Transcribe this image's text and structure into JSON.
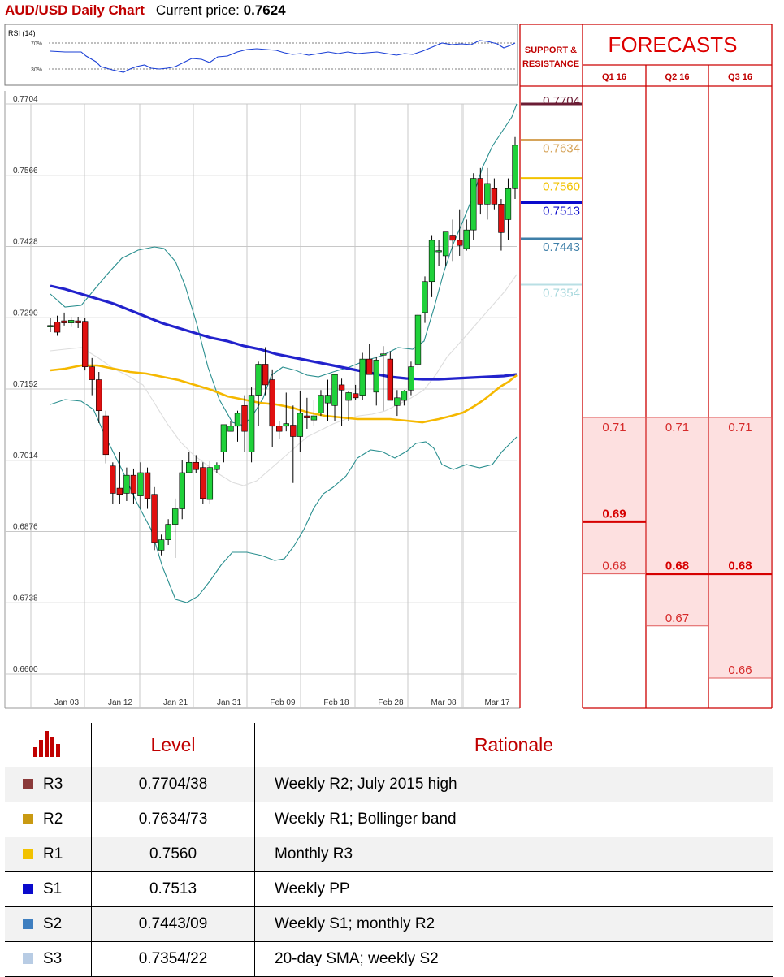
{
  "header": {
    "title": "AUD/USD Daily Chart",
    "current_price_label": "Current price:",
    "current_price": "0.7624"
  },
  "chart_data": {
    "type": "candlestick",
    "title": "AUD/USD Daily Chart",
    "ylim": [
      0.66,
      0.7704
    ],
    "y_ticks": [
      "0.7704",
      "0.7566",
      "0.7428",
      "0.7290",
      "0.7152",
      "0.7014",
      "0.6876",
      "0.6738",
      "0.6600"
    ],
    "x_ticks": [
      "Jan 03",
      "Jan 12",
      "Jan 21",
      "Jan 31",
      "Feb 09",
      "Feb 18",
      "Feb 28",
      "Mar 08",
      "Mar 17"
    ],
    "ohlc": [
      [
        0.7272,
        0.729,
        0.7262,
        0.7275
      ],
      [
        0.7282,
        0.7294,
        0.7255,
        0.7262
      ],
      [
        0.7284,
        0.73,
        0.7275,
        0.728
      ],
      [
        0.728,
        0.7292,
        0.7272,
        0.7285
      ],
      [
        0.7284,
        0.7292,
        0.727,
        0.728
      ],
      [
        0.7283,
        0.729,
        0.7188,
        0.7195
      ],
      [
        0.7195,
        0.7212,
        0.714,
        0.717
      ],
      [
        0.717,
        0.7185,
        0.7086,
        0.711
      ],
      [
        0.71,
        0.711,
        0.7008,
        0.7025
      ],
      [
        0.7003,
        0.701,
        0.693,
        0.695
      ],
      [
        0.696,
        0.703,
        0.693,
        0.6948
      ],
      [
        0.695,
        0.7,
        0.6935,
        0.6985
      ],
      [
        0.6985,
        0.6998,
        0.693,
        0.695
      ],
      [
        0.6945,
        0.701,
        0.692,
        0.699
      ],
      [
        0.699,
        0.7,
        0.692,
        0.694
      ],
      [
        0.6948,
        0.6962,
        0.684,
        0.6855
      ],
      [
        0.684,
        0.687,
        0.683,
        0.686
      ],
      [
        0.686,
        0.69,
        0.685,
        0.689
      ],
      [
        0.689,
        0.694,
        0.6825,
        0.692
      ],
      [
        0.692,
        0.7015,
        0.69,
        0.699
      ],
      [
        0.699,
        0.703,
        0.699,
        0.701
      ],
      [
        0.701,
        0.7024,
        0.699,
        0.6996
      ],
      [
        0.7,
        0.701,
        0.693,
        0.694
      ],
      [
        0.6938,
        0.7012,
        0.693,
        0.7
      ],
      [
        0.6996,
        0.701,
        0.699,
        0.7005
      ],
      [
        0.703,
        0.708,
        0.701,
        0.7083
      ],
      [
        0.707,
        0.709,
        0.707,
        0.708
      ],
      [
        0.708,
        0.711,
        0.705,
        0.7105
      ],
      [
        0.712,
        0.714,
        0.703,
        0.707
      ],
      [
        0.703,
        0.7155,
        0.701,
        0.714
      ],
      [
        0.714,
        0.7205,
        0.708,
        0.72
      ],
      [
        0.72,
        0.7233,
        0.714,
        0.716
      ],
      [
        0.717,
        0.719,
        0.704,
        0.708
      ],
      [
        0.708,
        0.709,
        0.7055,
        0.707
      ],
      [
        0.708,
        0.7145,
        0.707,
        0.7085
      ],
      [
        0.7082,
        0.712,
        0.697,
        0.706
      ],
      [
        0.706,
        0.7148,
        0.703,
        0.7105
      ],
      [
        0.71,
        0.7135,
        0.7075,
        0.7096
      ],
      [
        0.7092,
        0.713,
        0.708,
        0.71
      ],
      [
        0.7106,
        0.715,
        0.71,
        0.714
      ],
      [
        0.7125,
        0.717,
        0.709,
        0.714
      ],
      [
        0.712,
        0.718,
        0.709,
        0.718
      ],
      [
        0.716,
        0.7172,
        0.708,
        0.715
      ],
      [
        0.713,
        0.7148,
        0.709,
        0.7145
      ],
      [
        0.7143,
        0.716,
        0.713,
        0.7135
      ],
      [
        0.714,
        0.7222,
        0.713,
        0.721
      ],
      [
        0.721,
        0.724,
        0.718,
        0.718
      ],
      [
        0.7146,
        0.7215,
        0.712,
        0.7208
      ],
      [
        0.722,
        0.7235,
        0.711,
        0.722
      ],
      [
        0.721,
        0.7225,
        0.713,
        0.713
      ],
      [
        0.712,
        0.715,
        0.71,
        0.7135
      ],
      [
        0.713,
        0.715,
        0.712,
        0.7148
      ],
      [
        0.715,
        0.7205,
        0.714,
        0.7195
      ],
      [
        0.72,
        0.73,
        0.719,
        0.7295
      ],
      [
        0.73,
        0.737,
        0.728,
        0.736
      ],
      [
        0.736,
        0.745,
        0.733,
        0.744
      ],
      [
        0.742,
        0.744,
        0.739,
        0.742
      ],
      [
        0.741,
        0.745,
        0.739,
        0.7456
      ],
      [
        0.745,
        0.748,
        0.74,
        0.744
      ],
      [
        0.744,
        0.75,
        0.741,
        0.743
      ],
      [
        0.7424,
        0.748,
        0.742,
        0.746
      ],
      [
        0.746,
        0.757,
        0.744,
        0.756
      ],
      [
        0.756,
        0.758,
        0.749,
        0.751
      ],
      [
        0.751,
        0.758,
        0.748,
        0.755
      ],
      [
        0.754,
        0.756,
        0.75,
        0.751
      ],
      [
        0.751,
        0.752,
        0.742,
        0.7455
      ],
      [
        0.748,
        0.756,
        0.744,
        0.754
      ],
      [
        0.754,
        0.764,
        0.752,
        0.7624
      ]
    ]
  },
  "rsi": {
    "label": "RSI (14)",
    "levels": [
      "70%",
      "30%"
    ]
  },
  "sr_panel": {
    "title": "SUPPORT & RESISTANCE",
    "levels": [
      {
        "name": "R3",
        "value": "0.7704",
        "color": "#6b1d35"
      },
      {
        "name": "R2",
        "value": "0.7634",
        "color": "#d6a45a"
      },
      {
        "name": "R1",
        "value": "0.7560",
        "color": "#f2c200"
      },
      {
        "name": "S1",
        "value": "0.7513",
        "color": "#0a0acc"
      },
      {
        "name": "S2",
        "value": "0.7443",
        "color": "#3f7fa8"
      },
      {
        "name": "S3",
        "value": "0.7354",
        "color": "#b9dfe4"
      }
    ]
  },
  "forecasts": {
    "title": "FORECASTS",
    "columns": [
      {
        "label": "Q1 16",
        "high": "0.71",
        "mid": "0.69",
        "low": "0.68"
      },
      {
        "label": "Q2 16",
        "high": "0.71",
        "mid": "0.68",
        "low": "0.67"
      },
      {
        "label": "Q3 16",
        "high": "0.71",
        "mid": "0.68",
        "low": "0.66"
      }
    ]
  },
  "table": {
    "headers": [
      "Level",
      "Rationale"
    ],
    "rows": [
      {
        "name": "R3",
        "level": "0.7704/38",
        "rationale": "Weekly R2; July 2015 high",
        "color": "#8b3a3a"
      },
      {
        "name": "R2",
        "level": "0.7634/73",
        "rationale": "Weekly R1; Bollinger band",
        "color": "#c99a12"
      },
      {
        "name": "R1",
        "level": "0.7560",
        "rationale": "Monthly R3",
        "color": "#f2c200"
      },
      {
        "name": "S1",
        "level": "0.7513",
        "rationale": "Weekly PP",
        "color": "#0a0acc"
      },
      {
        "name": "S2",
        "level": "0.7443/09",
        "rationale": "Weekly S1; monthly R2",
        "color": "#3f7fc0"
      },
      {
        "name": "S3",
        "level": "0.7354/22",
        "rationale": "20-day SMA; weekly S2",
        "color": "#b8cce4"
      }
    ]
  }
}
